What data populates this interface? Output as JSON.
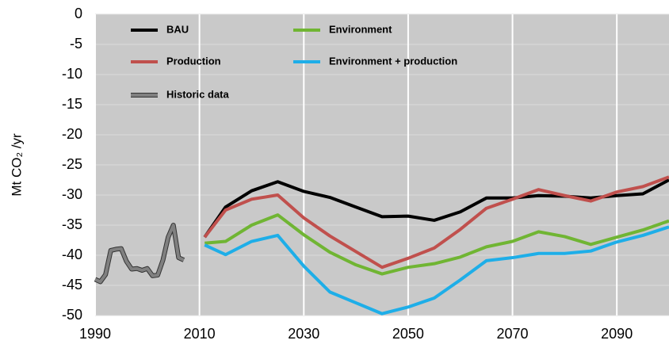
{
  "chart_data": {
    "type": "line",
    "ylabel": "Mt CO₂ /yr",
    "xlim": [
      1990,
      2100
    ],
    "xticks": [
      1990,
      2010,
      2030,
      2050,
      2070,
      2090
    ],
    "ylim": [
      -50,
      0
    ],
    "yticks": [
      0,
      -5,
      -10,
      -15,
      -20,
      -25,
      -30,
      -35,
      -40,
      -45,
      -50
    ],
    "grid": true,
    "legend": "top-left",
    "series": [
      {
        "name": "BAU",
        "color": "#000000",
        "x": [
          2011,
          2015,
          2020,
          2025,
          2030,
          2035,
          2040,
          2045,
          2050,
          2055,
          2060,
          2065,
          2070,
          2075,
          2080,
          2085,
          2090,
          2095,
          2100
        ],
        "values": [
          -37,
          -32,
          -29.3,
          -27.8,
          -29.4,
          -30.4,
          -32,
          -33.6,
          -33.5,
          -34.2,
          -32.8,
          -30.5,
          -30.5,
          -30.1,
          -30.2,
          -30.5,
          -30.1,
          -29.8,
          -27.5
        ]
      },
      {
        "name": "Environment",
        "color": "#70b533",
        "x": [
          2011,
          2015,
          2020,
          2025,
          2030,
          2035,
          2040,
          2045,
          2050,
          2055,
          2060,
          2065,
          2070,
          2075,
          2080,
          2085,
          2090,
          2095,
          2100
        ],
        "values": [
          -38,
          -37.7,
          -35,
          -33.3,
          -36.6,
          -39.5,
          -41.6,
          -43.1,
          -42,
          -41.4,
          -40.3,
          -38.6,
          -37.7,
          -36.1,
          -36.9,
          -38.2,
          -37,
          -35.8,
          -34.3
        ]
      },
      {
        "name": "Production",
        "color": "#c0504d",
        "x": [
          2011,
          2015,
          2020,
          2025,
          2030,
          2035,
          2040,
          2045,
          2050,
          2055,
          2060,
          2065,
          2070,
          2075,
          2080,
          2085,
          2090,
          2095,
          2100
        ],
        "values": [
          -37,
          -32.5,
          -30.7,
          -30,
          -33.8,
          -36.8,
          -39.4,
          -42,
          -40.5,
          -38.8,
          -35.7,
          -32.2,
          -30.7,
          -29.1,
          -30.1,
          -31,
          -29.5,
          -28.6,
          -27
        ]
      },
      {
        "name": "Environment + production",
        "color": "#1eaee8",
        "x": [
          2011,
          2015,
          2020,
          2025,
          2030,
          2035,
          2040,
          2045,
          2050,
          2055,
          2060,
          2065,
          2070,
          2075,
          2080,
          2085,
          2090,
          2095,
          2100
        ],
        "values": [
          -38.3,
          -39.9,
          -37.7,
          -36.7,
          -41.8,
          -46.1,
          -47.9,
          -49.7,
          -48.6,
          -47.1,
          -44.1,
          -40.9,
          -40.4,
          -39.7,
          -39.7,
          -39.3,
          -37.8,
          -36.7,
          -35.3
        ]
      },
      {
        "name": "Historic data",
        "color": "#808080",
        "x": [
          1990,
          1991,
          1992,
          1993,
          1994,
          1995,
          1996,
          1997,
          1998,
          1999,
          2000,
          2001,
          2002,
          2003,
          2004,
          2005,
          2006,
          2007
        ],
        "values": [
          -44,
          -44.4,
          -43.2,
          -39.2,
          -39,
          -38.9,
          -41,
          -42.3,
          -42.2,
          -42.5,
          -42.2,
          -43.4,
          -43.3,
          -40.8,
          -37,
          -35,
          -40.4,
          -40.8
        ]
      }
    ]
  }
}
